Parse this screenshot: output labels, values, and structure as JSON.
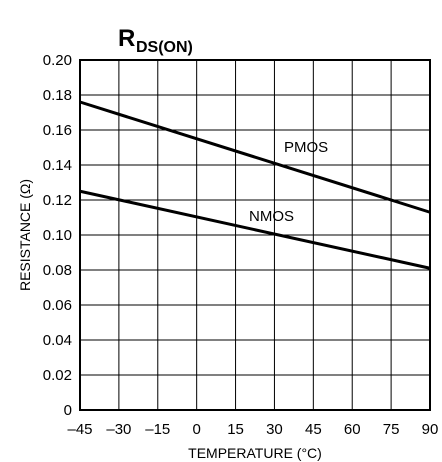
{
  "chart_data": {
    "type": "line",
    "title_main": "R",
    "title_sub": "DS(ON)",
    "xlabel": "TEMPERATURE (°C)",
    "ylabel": "RESISTANCE (Ω)",
    "xlim": [
      -45,
      90
    ],
    "ylim": [
      0,
      0.2
    ],
    "x_ticks": [
      "–45",
      "–30",
      "–15",
      "0",
      "15",
      "30",
      "45",
      "60",
      "75",
      "90"
    ],
    "y_ticks": [
      "0",
      "0.02",
      "0.04",
      "0.06",
      "0.08",
      "0.10",
      "0.12",
      "0.14",
      "0.16",
      "0.18",
      "0.20"
    ],
    "grid": true,
    "series": [
      {
        "name": "PMOS",
        "x": [
          -45,
          90
        ],
        "y": [
          0.176,
          0.113
        ]
      },
      {
        "name": "NMOS",
        "x": [
          -45,
          90
        ],
        "y": [
          0.125,
          0.081
        ]
      }
    ],
    "line_color": "#000000",
    "grid_color": "#000000"
  }
}
